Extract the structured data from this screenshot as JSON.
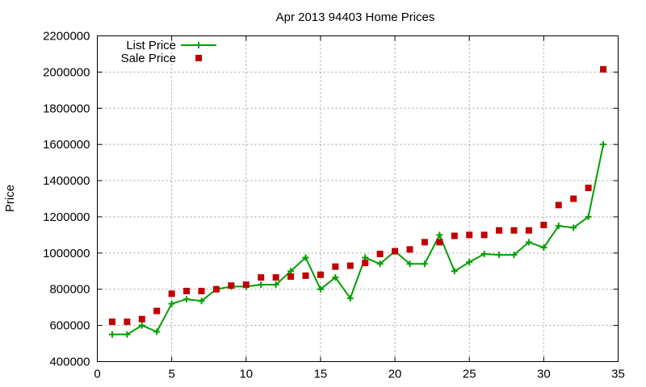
{
  "chart_data": {
    "type": "line",
    "title": "Apr 2013 94403 Home Prices",
    "xlabel": "",
    "ylabel": "Price",
    "xlim": [
      0,
      35
    ],
    "ylim": [
      400000,
      2200000
    ],
    "x_ticks": [
      0,
      5,
      10,
      15,
      20,
      25,
      30,
      35
    ],
    "y_ticks": [
      400000,
      600000,
      800000,
      1000000,
      1200000,
      1400000,
      1600000,
      1800000,
      2000000,
      2200000
    ],
    "grid": true,
    "legend_position": "top-left",
    "series": [
      {
        "name": "List Price",
        "kind": "line-points",
        "marker": "plus",
        "color": "#00a000",
        "x": [
          1,
          2,
          3,
          4,
          5,
          6,
          7,
          8,
          9,
          10,
          11,
          12,
          13,
          14,
          15,
          16,
          17,
          18,
          19,
          20,
          21,
          22,
          23,
          24,
          25,
          26,
          27,
          28,
          29,
          30,
          31,
          32,
          33,
          34
        ],
        "y": [
          550000,
          550000,
          600000,
          565000,
          720000,
          745000,
          735000,
          800000,
          815000,
          815000,
          825000,
          825000,
          900000,
          975000,
          800000,
          865000,
          750000,
          975000,
          940000,
          1010000,
          940000,
          940000,
          1100000,
          900000,
          950000,
          995000,
          990000,
          990000,
          1060000,
          1030000,
          1150000,
          1140000,
          1200000,
          1600000
        ]
      },
      {
        "name": "Sale Price",
        "kind": "points",
        "marker": "square",
        "color": "#c00000",
        "x": [
          1,
          2,
          3,
          4,
          5,
          6,
          7,
          8,
          9,
          10,
          11,
          12,
          13,
          14,
          15,
          16,
          17,
          18,
          19,
          20,
          21,
          22,
          23,
          24,
          25,
          26,
          27,
          28,
          29,
          30,
          31,
          32,
          33,
          34
        ],
        "y": [
          620000,
          620000,
          635000,
          680000,
          775000,
          790000,
          790000,
          800000,
          820000,
          825000,
          865000,
          865000,
          870000,
          875000,
          880000,
          925000,
          930000,
          945000,
          995000,
          1010000,
          1020000,
          1060000,
          1060000,
          1095000,
          1100000,
          1100000,
          1125000,
          1125000,
          1125000,
          1155000,
          1265000,
          1300000,
          1360000,
          2015000
        ]
      }
    ]
  }
}
